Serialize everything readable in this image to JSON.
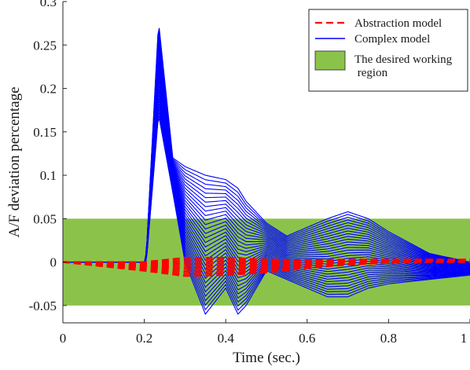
{
  "chart_data": {
    "type": "line",
    "xlabel": "Time (sec.)",
    "ylabel": "A/F deviation percentage",
    "xlim": [
      0,
      1
    ],
    "ylim": [
      -0.07,
      0.3
    ],
    "xticks": [
      {
        "value": 0,
        "label": "0"
      },
      {
        "value": 0.2,
        "label": "0.2"
      },
      {
        "value": 0.4,
        "label": "0.4"
      },
      {
        "value": 0.6,
        "label": "0.6"
      },
      {
        "value": 0.8,
        "label": "0.8"
      },
      {
        "value": 1,
        "label": "1"
      }
    ],
    "yticks": [
      {
        "value": -0.05,
        "label": "-0.05"
      },
      {
        "value": 0,
        "label": "0"
      },
      {
        "value": 0.05,
        "label": "0.05"
      },
      {
        "value": 0.1,
        "label": "0.1"
      },
      {
        "value": 0.15,
        "label": "0.15"
      },
      {
        "value": 0.2,
        "label": "0.2"
      },
      {
        "value": 0.25,
        "label": "0.25"
      },
      {
        "value": 0.3,
        "label": "0.3"
      }
    ],
    "desired_region": {
      "ymin": -0.05,
      "ymax": 0.05,
      "color": "#8bc34a"
    },
    "legend": {
      "placement": "top-right",
      "items": [
        {
          "label": "Abstraction model",
          "style": "dashed-line",
          "color": "#ff0000"
        },
        {
          "label": "Complex model",
          "style": "solid-line",
          "color": "#0000ff"
        },
        {
          "label": "The desired working\n region",
          "style": "patch",
          "color": "#8bc34a"
        }
      ]
    },
    "complex_model_envelope": {
      "x": [
        0,
        0.2,
        0.205,
        0.235,
        0.27,
        0.3,
        0.35,
        0.4,
        0.43,
        0.45,
        0.5,
        0.55,
        0.6,
        0.65,
        0.7,
        0.75,
        0.8,
        0.9,
        1.0
      ],
      "upper": [
        0,
        0,
        0.01,
        0.277,
        0.12,
        0.11,
        0.1,
        0.095,
        0.085,
        0.07,
        0.045,
        0.03,
        0.04,
        0.05,
        0.058,
        0.05,
        0.035,
        0.01,
        0
      ],
      "lower": [
        0,
        0,
        0,
        0.17,
        0.08,
        0.0,
        -0.06,
        -0.03,
        -0.06,
        -0.05,
        -0.01,
        -0.02,
        -0.03,
        -0.04,
        -0.04,
        -0.03,
        -0.025,
        -0.02,
        -0.015
      ]
    },
    "complex_model_count": 32,
    "abstraction_model_envelope": {
      "x": [
        0,
        0.1,
        0.2,
        0.3,
        0.4,
        0.5,
        0.6,
        0.7,
        0.8,
        0.9,
        1.0
      ],
      "upper": [
        0,
        0,
        0.0,
        0.005,
        0.005,
        0.003,
        0.002,
        0.003,
        0.003,
        0.003,
        0.003
      ],
      "lower": [
        0,
        -0.005,
        -0.01,
        -0.016,
        -0.015,
        -0.012,
        -0.007,
        -0.003,
        -0.001,
        0.0,
        0.0
      ]
    }
  }
}
